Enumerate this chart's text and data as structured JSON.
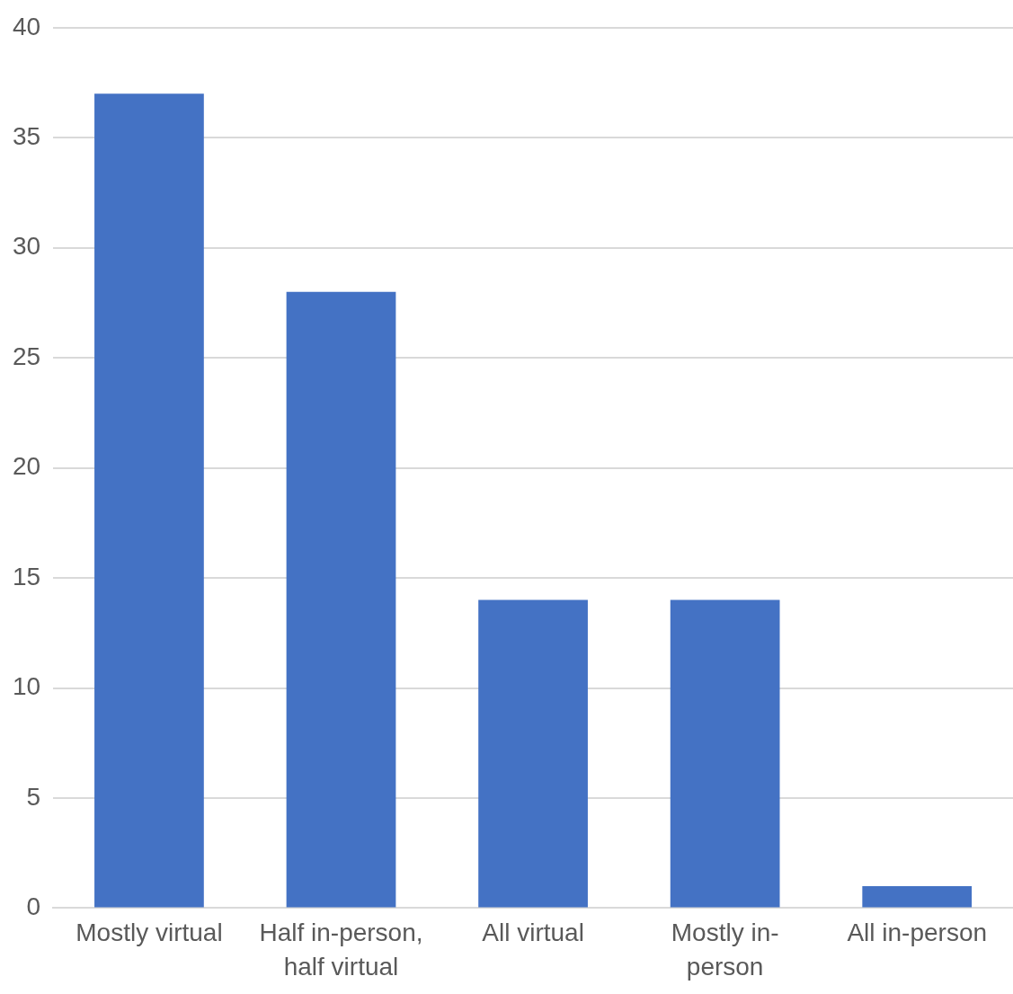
{
  "chart_data": {
    "type": "bar",
    "categories": [
      "Mostly virtual",
      "Half in-person, half virtual",
      "All virtual",
      "Mostly in-person",
      "All in-person"
    ],
    "values": [
      37,
      28,
      14,
      14,
      1
    ],
    "color": "#4472c4",
    "ylim": [
      0,
      40
    ],
    "yticks": [
      0,
      5,
      10,
      15,
      20,
      25,
      30,
      35,
      40
    ],
    "grid": "y",
    "legend": false
  }
}
